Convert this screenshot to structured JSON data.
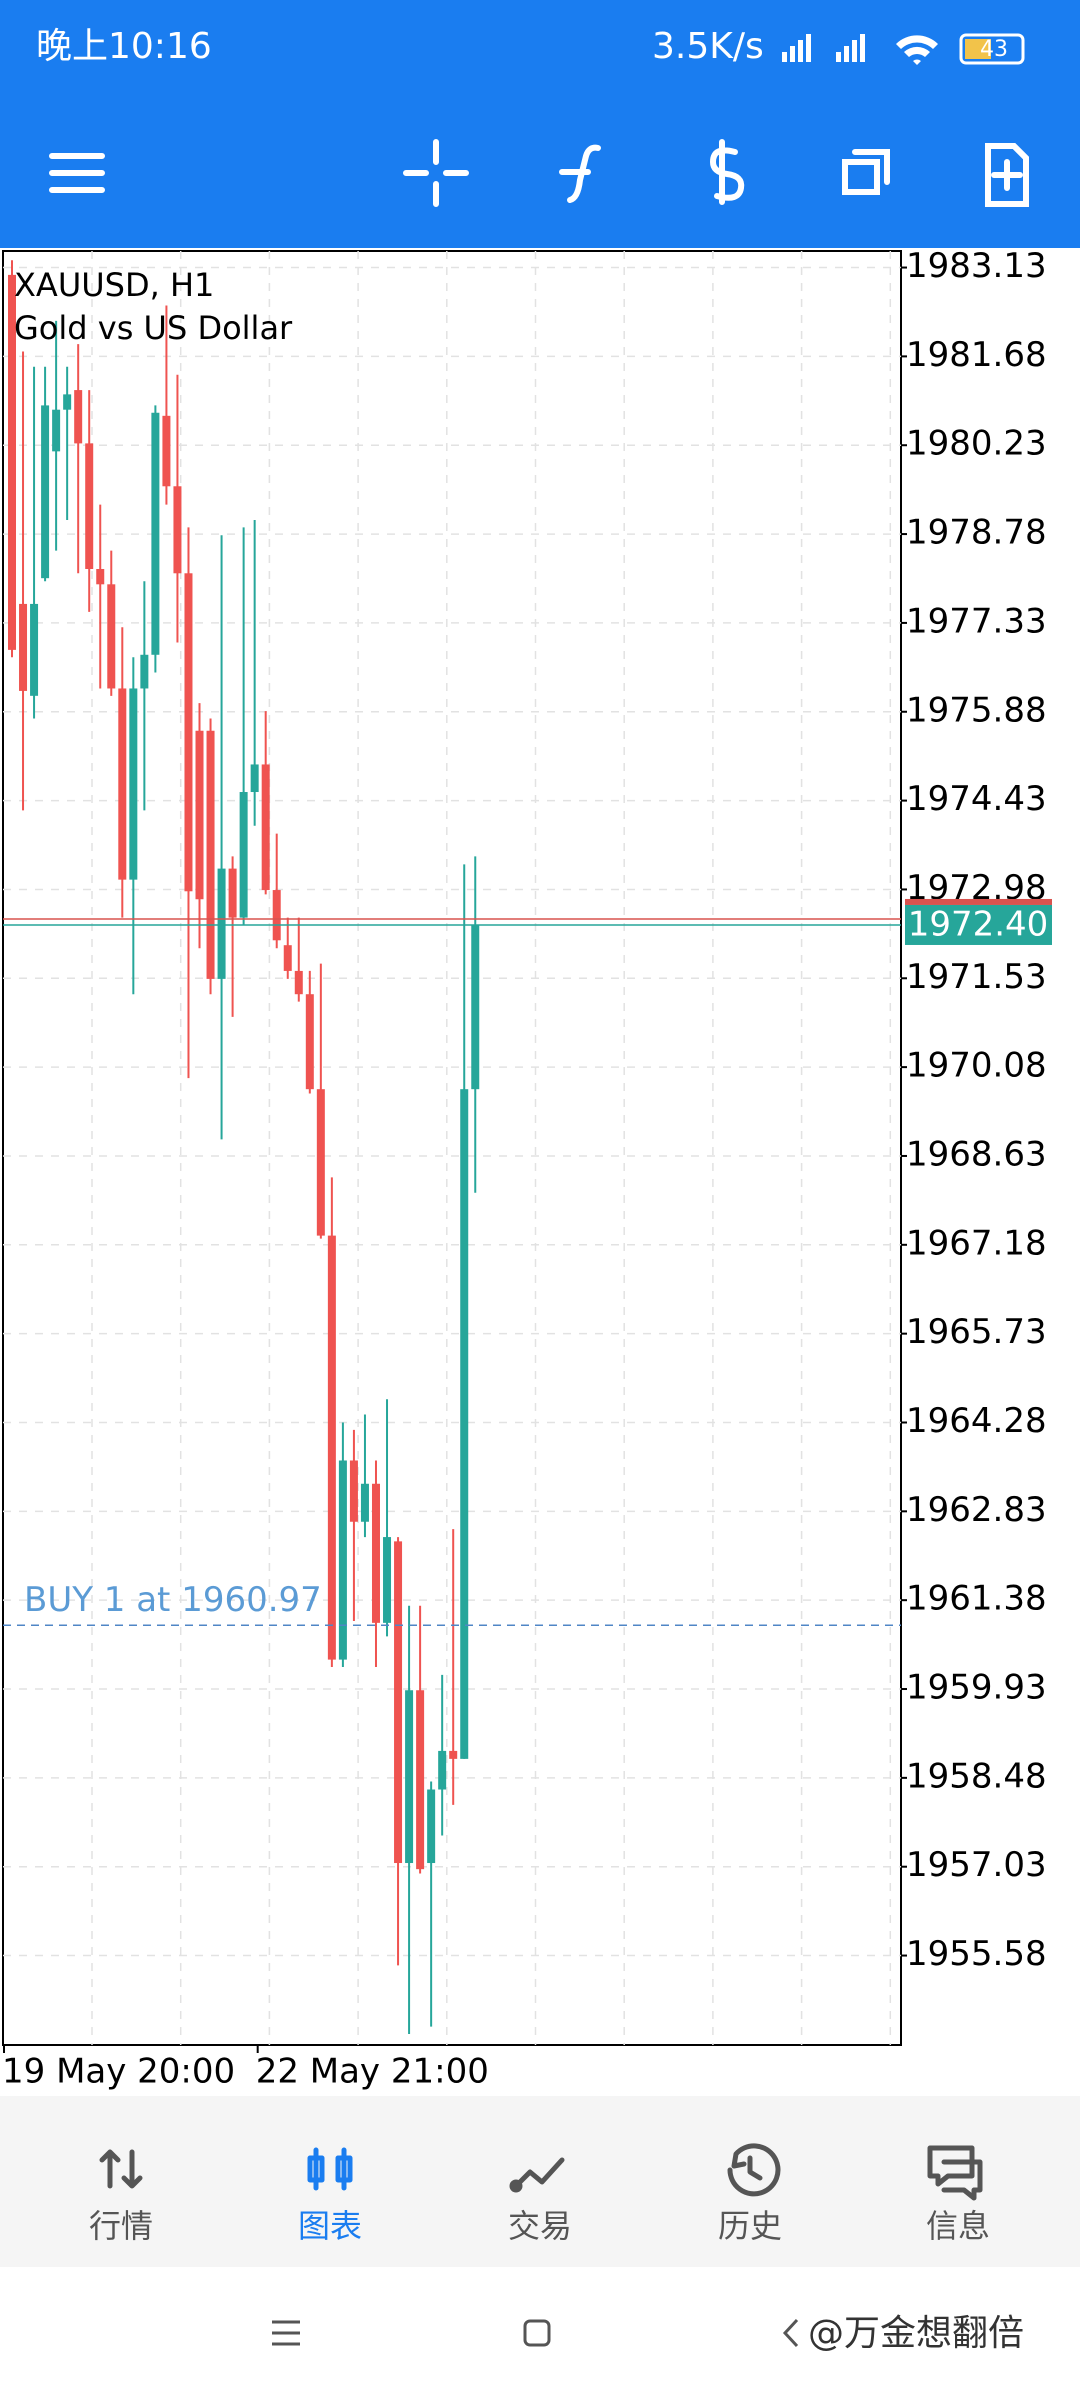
{
  "status_bar": {
    "time": "晚上10:16",
    "speed": "3.5K/s",
    "battery": "43"
  },
  "chart_data": {
    "type": "candlestick",
    "title": "XAUUSD, H1",
    "subtitle": "Gold vs US Dollar",
    "categories": [
      "19 May 20:00",
      null,
      null,
      null,
      null,
      null,
      null,
      null,
      null,
      null,
      null,
      null,
      null,
      null,
      null,
      null,
      null,
      null,
      null,
      null,
      null,
      null,
      null,
      "22 May 21:00",
      null,
      null,
      null,
      null,
      null,
      null,
      null,
      null,
      null,
      null,
      null,
      null,
      null,
      null,
      null,
      null,
      null,
      null,
      null
    ],
    "open": [
      1983.01,
      1977.64,
      1976.14,
      1978.06,
      1980.13,
      1980.81,
      1981.13,
      1980.26,
      1978.21,
      1977.96,
      1976.26,
      1973.14,
      1976.26,
      1976.81,
      1980.71,
      1979.56,
      1978.14,
      1975.57,
      1975.57,
      1971.52,
      1973.32,
      1972.52,
      1974.57,
      1975.02,
      1972.97,
      1972.07,
      1971.65,
      1971.27,
      1969.72,
      1967.33,
      1960.41,
      1963.66,
      1962.66,
      1963.28,
      1961.01,
      1962.34,
      1957.09,
      1959.91,
      1957.09,
      1958.29,
      1958.92,
      1958.79,
      1969.72
    ],
    "high": [
      1983.25,
      1981.76,
      1981.51,
      1981.51,
      1982.26,
      1981.51,
      1981.88,
      1981.13,
      1979.26,
      1978.51,
      1977.26,
      1976.77,
      1978.01,
      1980.88,
      1982.51,
      1981.38,
      1978.89,
      1976.02,
      1975.77,
      1978.76,
      1973.52,
      1978.89,
      1979.01,
      1975.89,
      1973.89,
      1972.52,
      1972.52,
      1971.65,
      1971.77,
      1968.28,
      1964.28,
      1964.16,
      1964.41,
      1963.66,
      1964.66,
      1962.41,
      1961.29,
      1961.29,
      1958.42,
      1960.16,
      1962.54,
      1973.39,
      1973.52
    ],
    "low": [
      1976.77,
      1974.27,
      1975.77,
      1978.01,
      1978.51,
      1979.01,
      1978.14,
      1977.51,
      1976.26,
      1976.14,
      1972.52,
      1971.27,
      1974.27,
      1976.52,
      1979.26,
      1977.01,
      1969.9,
      1972.02,
      1971.27,
      1968.9,
      1970.9,
      1972.4,
      1974.02,
      1972.9,
      1972.02,
      1971.52,
      1971.15,
      1969.65,
      1967.28,
      1960.29,
      1960.29,
      1961.04,
      1962.41,
      1960.29,
      1960.79,
      1955.42,
      1954.3,
      1956.92,
      1954.42,
      1957.54,
      1958.04,
      1958.79,
      1968.03
    ],
    "close": [
      1976.89,
      1976.22,
      1977.64,
      1980.88,
      1980.81,
      1981.06,
      1980.26,
      1978.21,
      1977.96,
      1976.26,
      1973.14,
      1976.26,
      1976.81,
      1980.76,
      1979.56,
      1978.14,
      1972.95,
      1972.82,
      1971.52,
      1973.32,
      1972.52,
      1974.57,
      1975.02,
      1972.97,
      1972.15,
      1971.65,
      1971.27,
      1969.72,
      1967.33,
      1960.41,
      1963.66,
      1962.66,
      1963.28,
      1961.01,
      1962.41,
      1957.09,
      1959.91,
      1956.99,
      1958.29,
      1958.92,
      1958.79,
      1969.72,
      1972.4
    ],
    "up_color": "#26a69a",
    "down_color": "#ef5350",
    "ylim": [
      1954.12,
      1983.4
    ],
    "yticks": [
      1983.13,
      1981.68,
      1980.23,
      1978.78,
      1977.33,
      1975.88,
      1974.43,
      1972.98,
      1971.53,
      1970.08,
      1968.63,
      1967.18,
      1965.73,
      1964.28,
      1962.83,
      1961.38,
      1959.93,
      1958.48,
      1957.03,
      1955.58
    ],
    "grid": true,
    "current_price": {
      "value": 1972.4,
      "label": "1972.40"
    },
    "order_line": {
      "value": 1960.97,
      "label": "BUY 1 at 1960.97"
    }
  },
  "bottom_nav": {
    "items": [
      "行情",
      "图表",
      "交易",
      "历史",
      "信息"
    ],
    "active": 1
  },
  "watermark": "@万金想翻倍"
}
